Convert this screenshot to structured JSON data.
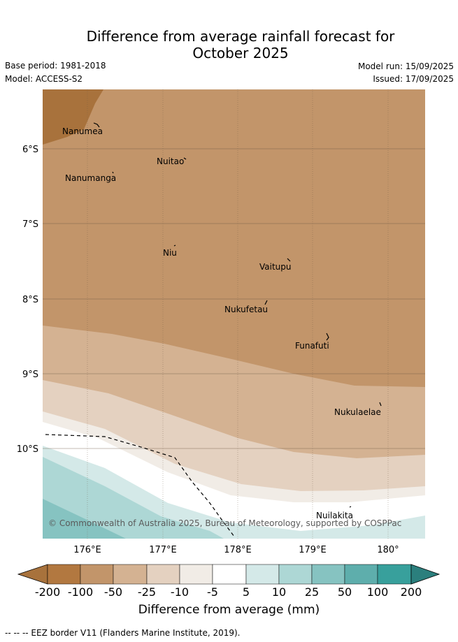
{
  "title": {
    "line1": "Difference from average rainfall forecast for",
    "line2": "October 2025"
  },
  "meta": {
    "base_period": "Base period: 1981-2018",
    "model": "Model: ACCESS-S2",
    "model_run": "Model run: 15/09/2025",
    "issued": "Issued: 17/09/2025"
  },
  "map": {
    "lat_labels": [
      "6°S",
      "7°S",
      "8°S",
      "9°S",
      "10°S"
    ],
    "lon_labels": [
      "176°E",
      "177°E",
      "178°E",
      "179°E",
      "180°"
    ],
    "places": [
      {
        "name": "Nanumea",
        "lon": 176.06,
        "lat": -5.67
      },
      {
        "name": "Nuitao",
        "lon": 177.34,
        "lat": -6.11
      },
      {
        "name": "Nanumanga",
        "lon": 176.32,
        "lat": -6.29
      },
      {
        "name": "Niu",
        "lon": 177.16,
        "lat": -7.24
      },
      {
        "name": "Vaitupu",
        "lon": 178.68,
        "lat": -7.48
      },
      {
        "name": "Nukufetau",
        "lon": 178.37,
        "lat": -8.03
      },
      {
        "name": "Funafuti",
        "lon": 179.2,
        "lat": -8.52
      },
      {
        "name": "Nukulaelae",
        "lon": 179.83,
        "lat": -9.38
      },
      {
        "name": "Nuilakita",
        "lon": 179.52,
        "lat": -10.8
      }
    ],
    "copyright": "© Commonwealth of Australia 2025, Bureau of Meteorology, supported by COSPPac",
    "colors": {
      "band_m200": "#a8723c",
      "band_m100": "#c2956a",
      "band_m50": "#d4b292",
      "band_m25": "#e4d1c0",
      "band_m10": "#f1ece6",
      "band_m5": "#ffffff",
      "band_p5": "#d4e9e8",
      "band_p10": "#add7d5",
      "band_p25": "#86c3c1",
      "band_p50": "#5eaeac",
      "band_p100": "#38a09c",
      "band_p200": "#2b7f7d"
    }
  },
  "colorbar": {
    "labels": [
      "-200",
      "-100",
      "-50",
      "-25",
      "-10",
      "-5",
      "5",
      "10",
      "25",
      "50",
      "100",
      "200"
    ],
    "title": "Difference from average (mm)"
  },
  "footnote": "-- -- -- EEZ border V11 (Flanders Marine Institute, 2019)."
}
